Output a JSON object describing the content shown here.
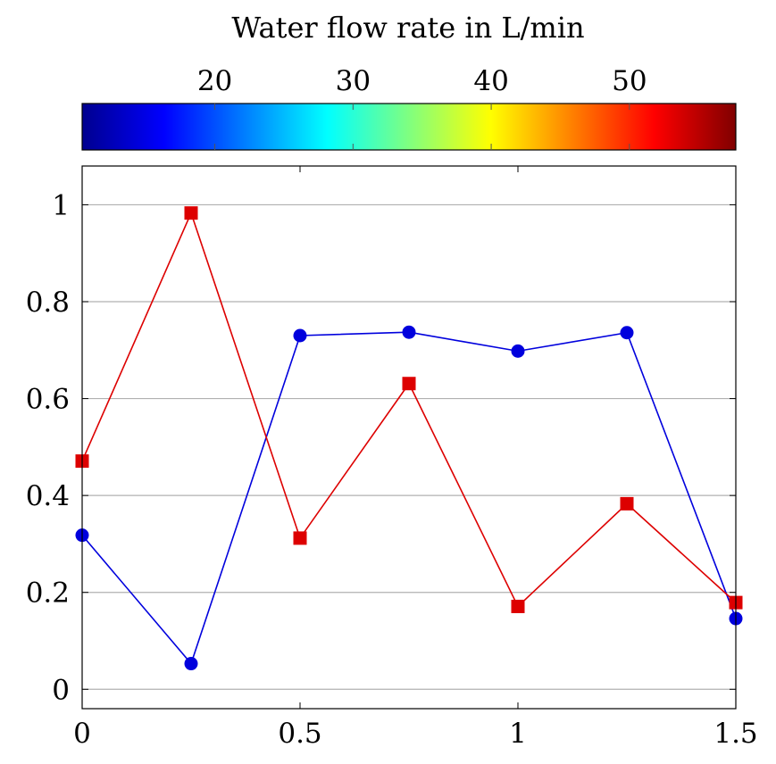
{
  "chart_data": {
    "type": "line",
    "colorbar": {
      "title": "Water flow rate in L/min",
      "min": 10.4,
      "max": 57.7,
      "ticks": [
        20,
        30,
        40,
        50
      ],
      "colormap": "jet"
    },
    "x": [
      0,
      0.25,
      0.5,
      0.75,
      1.0,
      1.25,
      1.5
    ],
    "series": [
      {
        "color": "#0000dd",
        "marker": "circle",
        "values": [
          0.318,
          0.053,
          0.73,
          0.737,
          0.698,
          0.736,
          0.146
        ]
      },
      {
        "color": "#dd0000",
        "marker": "square",
        "values": [
          0.471,
          0.983,
          0.312,
          0.631,
          0.171,
          0.383,
          0.179
        ]
      }
    ],
    "xlim": [
      0,
      1.5
    ],
    "ylim": [
      -0.04,
      1.08
    ],
    "xticks": [
      0,
      0.5,
      1,
      1.5
    ],
    "xtick_labels": [
      "0",
      "0.5",
      "1",
      "1.5"
    ],
    "yticks": [
      0,
      0.2,
      0.4,
      0.6,
      0.8,
      1
    ],
    "ytick_labels": [
      "0",
      "0.2",
      "0.4",
      "0.6",
      "0.8",
      "1"
    ],
    "grid": "horizontal",
    "xlabel": "",
    "ylabel": ""
  }
}
